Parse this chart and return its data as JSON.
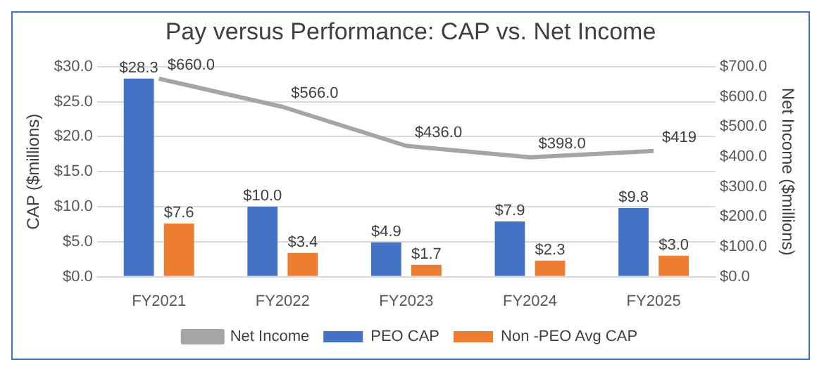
{
  "chart_data": {
    "type": "bar",
    "title": "Pay versus Performance: CAP vs. Net Income",
    "ylabel": "CAP ($millions)",
    "y2label": "Net Income ($millions)",
    "categories": [
      "FY2021",
      "FY2022",
      "FY2023",
      "FY2024",
      "FY2025"
    ],
    "series": [
      {
        "name": "PEO CAP",
        "color": "#4472c4",
        "values": [
          28.3,
          10.0,
          4.9,
          7.9,
          9.8
        ],
        "value_labels": [
          "$28.3",
          "$10.0",
          "$4.9",
          "$7.9",
          "$9.8"
        ]
      },
      {
        "name": "Non -PEO Avg CAP",
        "color": "#ed7d31",
        "values": [
          7.6,
          3.4,
          1.7,
          2.3,
          3.0
        ],
        "value_labels": [
          "$7.6",
          "$3.4",
          "$1.7",
          "$2.3",
          "$3.0"
        ]
      },
      {
        "name": "Net Income",
        "type": "line",
        "axis": "y2",
        "color": "#a5a5a5",
        "values": [
          660.0,
          566.0,
          436.0,
          398.0,
          419
        ],
        "value_labels": [
          "$660.0",
          "$566.0",
          "$436.0",
          "$398.0",
          "$419"
        ],
        "marker": "none"
      }
    ],
    "ylim": [
      0,
      30
    ],
    "yticks": [
      {
        "value": 0,
        "label": "$0.0"
      },
      {
        "value": 5,
        "label": "$5.0"
      },
      {
        "value": 10,
        "label": "$10.0"
      },
      {
        "value": 15,
        "label": "$15.0"
      },
      {
        "value": 20,
        "label": "$20.0"
      },
      {
        "value": 25,
        "label": "$25.0"
      },
      {
        "value": 30,
        "label": "$30.0"
      }
    ],
    "y2lim": [
      0,
      700
    ],
    "y2ticks": [
      {
        "value": 0,
        "label": "$0.0"
      },
      {
        "value": 100,
        "label": "$100.0"
      },
      {
        "value": 200,
        "label": "$200.0"
      },
      {
        "value": 300,
        "label": "$300.0"
      },
      {
        "value": 400,
        "label": "$400.0"
      },
      {
        "value": 500,
        "label": "$500.0"
      },
      {
        "value": 600,
        "label": "$600.0"
      },
      {
        "value": 700,
        "label": "$700.0"
      }
    ],
    "grid": "y",
    "legend": "bottom"
  }
}
